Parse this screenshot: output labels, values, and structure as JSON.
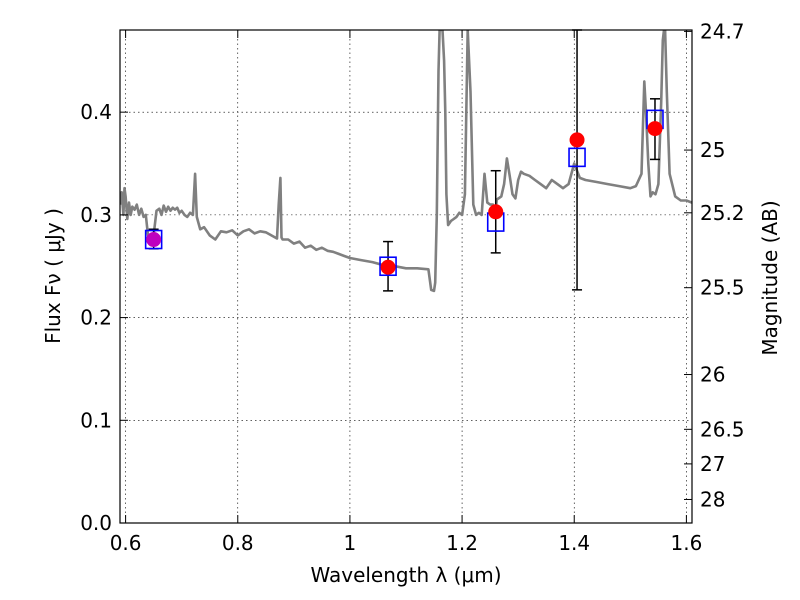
{
  "chart_data": {
    "type": "line",
    "xlabel": "Wavelength  λ (μm)",
    "ylabel": "Flux  Fν  ( μJy )",
    "y2label": "Magnitude (AB)",
    "xlim": [
      0.59,
      1.61
    ],
    "ylim": [
      0.0,
      0.48
    ],
    "xticks": [
      0.6,
      0.8,
      1.0,
      1.2,
      1.4,
      1.6
    ],
    "xtick_labels": [
      "0.6",
      "0.8",
      "1",
      "1.2",
      "1.4",
      "1.6"
    ],
    "yticks": [
      0.0,
      0.1,
      0.2,
      0.3,
      0.4
    ],
    "ytick_labels": [
      "0.0",
      "0.1",
      "0.2",
      "0.3",
      "0.4"
    ],
    "y2ticks": [
      24.7,
      25,
      25.2,
      25.5,
      26,
      26.5,
      27,
      28
    ],
    "y2tick_labels": [
      "24.7",
      "25",
      "25.2",
      "25.5",
      "26",
      "26.5",
      "27",
      "28"
    ],
    "grid": true,
    "colors": {
      "spectrum": "#808080",
      "observed": "#ff0000",
      "model": "#0000ff",
      "highlight": "#bf00bf",
      "errorbar": "#000000"
    },
    "spectrum": {
      "x": [
        0.59,
        0.593,
        0.596,
        0.598,
        0.6,
        0.603,
        0.606,
        0.609,
        0.612,
        0.616,
        0.62,
        0.624,
        0.628,
        0.632,
        0.636,
        0.64,
        0.645,
        0.65,
        0.655,
        0.66,
        0.664,
        0.668,
        0.672,
        0.676,
        0.68,
        0.684,
        0.688,
        0.692,
        0.696,
        0.7,
        0.705,
        0.71,
        0.715,
        0.72,
        0.724,
        0.727,
        0.73,
        0.733,
        0.74,
        0.75,
        0.76,
        0.77,
        0.78,
        0.79,
        0.8,
        0.81,
        0.82,
        0.83,
        0.84,
        0.85,
        0.86,
        0.87,
        0.873,
        0.876,
        0.878,
        0.88,
        0.89,
        0.9,
        0.91,
        0.92,
        0.93,
        0.94,
        0.95,
        0.96,
        0.97,
        0.98,
        0.99,
        1.0,
        1.02,
        1.04,
        1.06,
        1.08,
        1.1,
        1.12,
        1.14,
        1.145,
        1.15,
        1.152,
        1.155,
        1.158,
        1.16,
        1.162,
        1.165,
        1.168,
        1.17,
        1.172,
        1.175,
        1.18,
        1.185,
        1.19,
        1.195,
        1.2,
        1.205,
        1.21,
        1.215,
        1.22,
        1.225,
        1.23,
        1.235,
        1.24,
        1.245,
        1.25,
        1.255,
        1.26,
        1.262,
        1.265,
        1.27,
        1.275,
        1.28,
        1.285,
        1.29,
        1.295,
        1.3,
        1.305,
        1.31,
        1.32,
        1.33,
        1.34,
        1.35,
        1.36,
        1.37,
        1.38,
        1.39,
        1.4,
        1.41,
        1.42,
        1.44,
        1.46,
        1.48,
        1.5,
        1.51,
        1.52,
        1.525,
        1.528,
        1.532,
        1.536,
        1.54,
        1.545,
        1.55,
        1.555,
        1.558,
        1.56,
        1.562,
        1.565,
        1.57,
        1.58,
        1.59,
        1.6,
        1.61
      ],
      "y": [
        0.31,
        0.322,
        0.3,
        0.326,
        0.318,
        0.296,
        0.312,
        0.3,
        0.308,
        0.305,
        0.31,
        0.3,
        0.306,
        0.298,
        0.3,
        0.28,
        0.272,
        0.28,
        0.304,
        0.306,
        0.3,
        0.309,
        0.303,
        0.308,
        0.304,
        0.307,
        0.305,
        0.307,
        0.302,
        0.304,
        0.3,
        0.298,
        0.302,
        0.3,
        0.34,
        0.298,
        0.292,
        0.286,
        0.288,
        0.28,
        0.276,
        0.284,
        0.283,
        0.285,
        0.28,
        0.284,
        0.286,
        0.282,
        0.284,
        0.283,
        0.28,
        0.277,
        0.31,
        0.336,
        0.278,
        0.276,
        0.276,
        0.272,
        0.274,
        0.268,
        0.27,
        0.266,
        0.268,
        0.265,
        0.264,
        0.262,
        0.26,
        0.258,
        0.256,
        0.254,
        0.251,
        0.25,
        0.248,
        0.248,
        0.247,
        0.227,
        0.226,
        0.234,
        0.3,
        0.44,
        0.48,
        0.48,
        0.48,
        0.45,
        0.4,
        0.32,
        0.29,
        0.294,
        0.296,
        0.298,
        0.302,
        0.3,
        0.32,
        0.48,
        0.42,
        0.31,
        0.3,
        0.302,
        0.3,
        0.34,
        0.312,
        0.31,
        0.31,
        0.305,
        0.315,
        0.316,
        0.318,
        0.33,
        0.355,
        0.338,
        0.32,
        0.316,
        0.334,
        0.342,
        0.34,
        0.338,
        0.334,
        0.33,
        0.326,
        0.334,
        0.33,
        0.326,
        0.33,
        0.35,
        0.336,
        0.334,
        0.332,
        0.33,
        0.328,
        0.326,
        0.328,
        0.34,
        0.43,
        0.4,
        0.35,
        0.318,
        0.322,
        0.32,
        0.33,
        0.41,
        0.47,
        0.48,
        0.48,
        0.42,
        0.34,
        0.318,
        0.314,
        0.314,
        0.312
      ],
      "clip_to_axes": true
    },
    "points": [
      {
        "x": 0.65,
        "flux": 0.276,
        "model_flux": 0.276,
        "err_low": 0.267,
        "err_high": 0.286,
        "highlight": true
      },
      {
        "x": 1.068,
        "flux": 0.249,
        "model_flux": 0.25,
        "err_low": 0.226,
        "err_high": 0.274,
        "highlight": false
      },
      {
        "x": 1.26,
        "flux": 0.303,
        "model_flux": 0.293,
        "err_low": 0.263,
        "err_high": 0.343,
        "highlight": false
      },
      {
        "x": 1.405,
        "flux": 0.373,
        "model_flux": 0.356,
        "err_low": 0.227,
        "err_high": 0.48,
        "highlight": false
      },
      {
        "x": 1.544,
        "flux": 0.384,
        "model_flux": 0.393,
        "err_low": 0.354,
        "err_high": 0.413,
        "highlight": false
      }
    ]
  }
}
